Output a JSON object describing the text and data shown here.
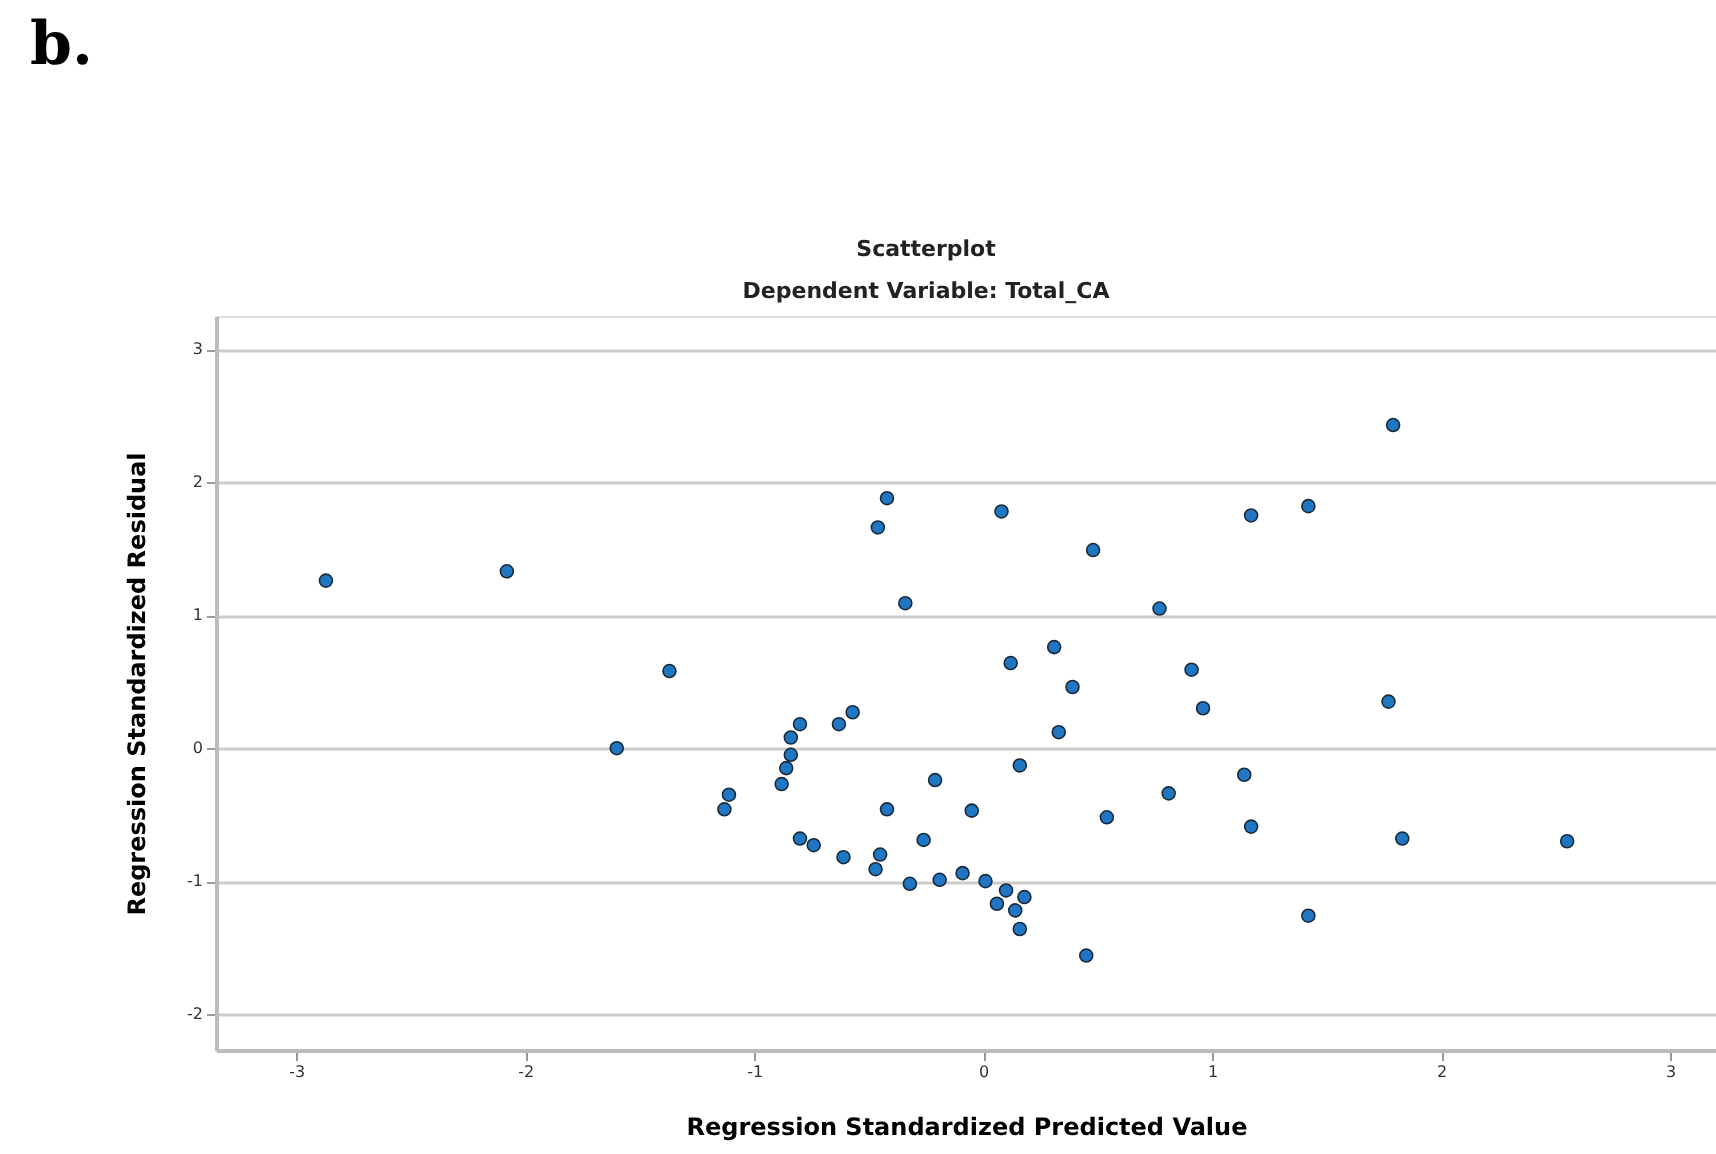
{
  "chart_data": {
    "type": "scatter",
    "title": "Scatterplot",
    "subtitle": "Dependent Variable: Total_CA",
    "xlabel": "Regression Standardized Predicted Value",
    "ylabel": "Regression Standardized Residual",
    "annotations": [
      "b."
    ],
    "x": [
      -2.87,
      -2.08,
      -1.6,
      -1.37,
      -1.13,
      -1.11,
      -0.88,
      -0.86,
      -0.84,
      -0.84,
      -0.8,
      -0.8,
      -0.74,
      -0.63,
      -0.57,
      -0.61,
      -0.46,
      -0.42,
      -0.34,
      -0.42,
      -0.47,
      -0.45,
      -0.32,
      -0.26,
      -0.21,
      -0.19,
      -0.09,
      -0.05,
      0.01,
      0.08,
      0.12,
      0.16,
      0.1,
      0.18,
      0.06,
      0.14,
      0.16,
      0.31,
      0.39,
      0.33,
      0.45,
      0.48,
      0.54,
      0.77,
      0.81,
      0.91,
      0.96,
      1.14,
      1.17,
      1.17,
      1.42,
      1.42,
      1.77,
      1.79,
      1.83,
      2.55
    ],
    "series": [
      {
        "color": "#1f77c4",
        "values": [
          1.26,
          1.33,
          0.0,
          0.58,
          -0.46,
          -0.35,
          -0.27,
          -0.15,
          -0.05,
          0.08,
          0.18,
          -0.68,
          -0.73,
          0.18,
          0.27,
          -0.82,
          1.66,
          1.88,
          1.09,
          -0.46,
          -0.91,
          -0.8,
          -1.02,
          -0.69,
          -0.24,
          -0.99,
          -0.94,
          -0.47,
          -1.0,
          1.78,
          0.64,
          -0.13,
          -1.07,
          -1.12,
          -1.17,
          -1.22,
          -1.36,
          0.76,
          0.46,
          0.12,
          -1.56,
          1.49,
          -0.52,
          1.05,
          -0.34,
          0.59,
          0.3,
          -0.2,
          -0.59,
          1.75,
          1.82,
          -1.26,
          0.35,
          2.43,
          -0.68,
          -0.7
        ]
      }
    ],
    "xlim": [
      -3.35,
      3.2
    ],
    "ylim": [
      -2.27,
      3.25
    ],
    "xticks": [
      -3,
      -2,
      -1,
      0,
      1,
      2,
      3
    ],
    "yticks": [
      -2,
      -1,
      0,
      1,
      2,
      3
    ],
    "grid": "y",
    "marker": "circle"
  }
}
